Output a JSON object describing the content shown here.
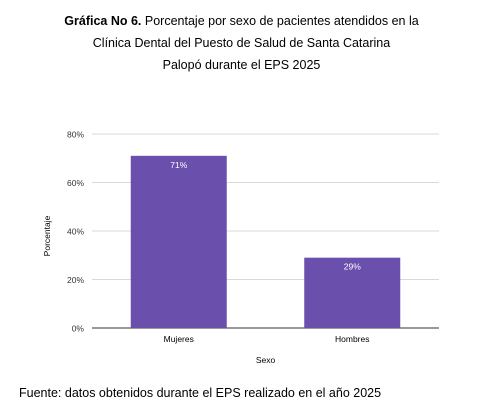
{
  "caption": {
    "label": "Gráfica No 6.",
    "line1": "Porcentaje por sexo de pacientes atendidos en la",
    "line2": "Clínica Dental del Puesto de Salud de Santa Catarina",
    "line3": "Palopó durante el EPS 2025"
  },
  "source_note": "Fuente: datos obtenidos durante el EPS realizado en el año 2025",
  "chart_data": {
    "type": "bar",
    "title": "",
    "xlabel": "Sexo",
    "ylabel": "Porcentaje",
    "categories": [
      "Mujeres",
      "Hombres"
    ],
    "values": [
      71,
      29
    ],
    "data_labels": [
      "71%",
      "29%"
    ],
    "ylim": [
      0,
      80
    ],
    "yticks": [
      0,
      20,
      40,
      60,
      80
    ],
    "ytick_labels": [
      "0%",
      "20%",
      "40%",
      "60%",
      "80%"
    ],
    "grid": true,
    "bar_color": "#6a4fad"
  }
}
